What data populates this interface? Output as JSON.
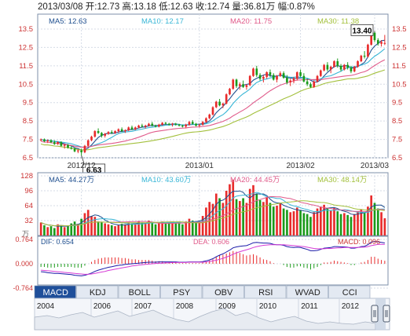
{
  "header": {
    "text": "2013/03/08 开:12.73 高:13.18 低:12.63 收:12.74 量:36.81万 幅:0.87%"
  },
  "colors": {
    "up": "#e82b2b",
    "down": "#1a9a1a",
    "ma5": "#1f4f8f",
    "ma10": "#38b6d6",
    "ma20": "#e05a8a",
    "ma30": "#a3c03c",
    "grid": "#d5dbe6",
    "axis": "#c33"
  },
  "price_legend": [
    {
      "label": "MA5: 12.63",
      "color": "#1f4f8f"
    },
    {
      "label": "MA10: 12.17",
      "color": "#38b6d6"
    },
    {
      "label": "MA20: 11.75",
      "color": "#e05a8a"
    },
    {
      "label": "MA30: 11.38",
      "color": "#a3c03c"
    }
  ],
  "volume_legend": [
    {
      "label": "MA5: 44.27万",
      "color": "#1f4f8f"
    },
    {
      "label": "MA10: 43.60万",
      "color": "#38b6d6"
    },
    {
      "label": "MA20: 44.45万",
      "color": "#e05a8a"
    },
    {
      "label": "MA30: 48.14万",
      "color": "#a3c03c"
    }
  ],
  "macd_legend": {
    "dif": "DIF: 0.654",
    "dea": "DEA: 0.606",
    "macd": "MACD: 0.096"
  },
  "volume_unit": "万",
  "tabs": [
    "MACD",
    "KDJ",
    "BOLL",
    "PSY",
    "OBV",
    "RSI",
    "WVAD",
    "CCI"
  ],
  "timeline_years": [
    "2004",
    "2006",
    "2007",
    "2008",
    "2009",
    "2010",
    "2011",
    "2012"
  ],
  "chart_data": [
    {
      "type": "candlestick",
      "title": "",
      "ylim": [
        6.5,
        13.5
      ],
      "y_ticks": [
        "13.5",
        "12.5",
        "11.5",
        "10.5",
        "9.5",
        "8.5",
        "7.5",
        "6.5"
      ],
      "x_tick_labels": [
        {
          "label": "2012/12",
          "index": 12
        },
        {
          "label": "2013/01",
          "index": 47
        },
        {
          "label": "2013/02",
          "index": 77
        },
        {
          "label": "2013/03",
          "index": 99
        }
      ],
      "candles": [
        [
          7.45,
          7.55,
          7.4,
          7.5
        ],
        [
          7.5,
          7.55,
          7.35,
          7.4
        ],
        [
          7.4,
          7.5,
          7.3,
          7.45
        ],
        [
          7.45,
          7.5,
          7.3,
          7.35
        ],
        [
          7.35,
          7.45,
          7.2,
          7.25
        ],
        [
          7.25,
          7.4,
          7.2,
          7.35
        ],
        [
          7.35,
          7.4,
          7.1,
          7.15
        ],
        [
          7.15,
          7.25,
          7.0,
          7.2
        ],
        [
          7.2,
          7.25,
          7.0,
          7.05
        ],
        [
          7.05,
          7.15,
          6.95,
          7.0
        ],
        [
          7.0,
          7.05,
          6.8,
          6.85
        ],
        [
          6.85,
          6.95,
          6.75,
          6.9
        ],
        [
          6.9,
          7.0,
          6.63,
          6.8
        ],
        [
          6.8,
          7.2,
          6.75,
          7.15
        ],
        [
          7.15,
          7.5,
          7.1,
          7.45
        ],
        [
          7.45,
          7.7,
          7.4,
          7.65
        ],
        [
          7.65,
          8.0,
          7.6,
          7.95
        ],
        [
          7.95,
          8.1,
          7.8,
          7.85
        ],
        [
          7.85,
          7.9,
          7.6,
          7.7
        ],
        [
          7.7,
          7.85,
          7.6,
          7.8
        ],
        [
          7.8,
          7.95,
          7.75,
          7.9
        ],
        [
          7.9,
          8.0,
          7.8,
          7.85
        ],
        [
          7.85,
          8.0,
          7.8,
          7.95
        ],
        [
          7.95,
          8.1,
          7.85,
          8.05
        ],
        [
          8.05,
          8.15,
          7.9,
          7.95
        ],
        [
          7.95,
          8.05,
          7.85,
          8.0
        ],
        [
          8.0,
          8.2,
          7.95,
          8.15
        ],
        [
          8.15,
          8.25,
          8.0,
          8.05
        ],
        [
          8.05,
          8.2,
          8.0,
          8.15
        ],
        [
          8.15,
          8.3,
          8.1,
          8.25
        ],
        [
          8.25,
          8.35,
          8.15,
          8.2
        ],
        [
          8.2,
          8.3,
          8.1,
          8.25
        ],
        [
          8.25,
          8.4,
          8.2,
          8.35
        ],
        [
          8.35,
          8.45,
          8.2,
          8.25
        ],
        [
          8.25,
          8.3,
          8.15,
          8.2
        ],
        [
          8.2,
          8.35,
          8.15,
          8.3
        ],
        [
          8.3,
          8.45,
          8.25,
          8.4
        ],
        [
          8.4,
          8.45,
          8.3,
          8.35
        ],
        [
          8.35,
          8.4,
          8.25,
          8.3
        ],
        [
          8.3,
          8.4,
          8.2,
          8.35
        ],
        [
          8.35,
          8.4,
          8.25,
          8.3
        ],
        [
          8.3,
          8.35,
          8.2,
          8.25
        ],
        [
          8.25,
          8.3,
          8.15,
          8.2
        ],
        [
          8.2,
          8.35,
          8.1,
          8.3
        ],
        [
          8.3,
          8.5,
          8.25,
          8.45
        ],
        [
          8.45,
          8.55,
          8.3,
          8.35
        ],
        [
          8.35,
          8.4,
          8.2,
          8.25
        ],
        [
          8.25,
          8.35,
          8.15,
          8.3
        ],
        [
          8.3,
          8.5,
          8.25,
          8.45
        ],
        [
          8.45,
          8.7,
          8.4,
          8.65
        ],
        [
          8.65,
          8.9,
          8.6,
          8.85
        ],
        [
          8.85,
          9.3,
          8.8,
          9.25
        ],
        [
          9.25,
          9.6,
          9.2,
          9.55
        ],
        [
          9.55,
          9.7,
          9.3,
          9.35
        ],
        [
          9.35,
          9.5,
          9.2,
          9.45
        ],
        [
          9.45,
          10.0,
          9.4,
          9.95
        ],
        [
          9.95,
          10.3,
          9.9,
          10.25
        ],
        [
          10.25,
          10.8,
          10.2,
          10.75
        ],
        [
          10.75,
          10.8,
          10.3,
          10.4
        ],
        [
          10.4,
          10.6,
          10.2,
          10.5
        ],
        [
          10.5,
          10.7,
          10.3,
          10.35
        ],
        [
          10.35,
          10.5,
          10.2,
          10.45
        ],
        [
          10.45,
          11.0,
          10.4,
          10.95
        ],
        [
          10.95,
          11.4,
          10.9,
          11.35
        ],
        [
          11.35,
          11.5,
          10.9,
          11.0
        ],
        [
          11.0,
          11.1,
          10.7,
          10.8
        ],
        [
          10.8,
          11.0,
          10.6,
          10.9
        ],
        [
          10.9,
          11.2,
          10.8,
          11.15
        ],
        [
          11.15,
          11.3,
          10.9,
          11.0
        ],
        [
          11.0,
          11.1,
          10.7,
          10.75
        ],
        [
          10.75,
          11.0,
          10.6,
          10.95
        ],
        [
          10.95,
          11.2,
          10.9,
          11.1
        ],
        [
          11.1,
          11.2,
          10.8,
          10.85
        ],
        [
          10.85,
          11.0,
          10.5,
          10.6
        ],
        [
          10.6,
          10.8,
          10.4,
          10.7
        ],
        [
          10.7,
          10.9,
          10.55,
          10.8
        ],
        [
          10.8,
          11.2,
          10.7,
          11.15
        ],
        [
          11.15,
          11.3,
          10.9,
          10.95
        ],
        [
          10.95,
          11.1,
          10.6,
          10.65
        ],
        [
          10.65,
          10.8,
          10.4,
          10.5
        ],
        [
          10.5,
          10.6,
          10.3,
          10.35
        ],
        [
          10.35,
          10.7,
          10.3,
          10.65
        ],
        [
          10.65,
          11.0,
          10.6,
          10.95
        ],
        [
          10.95,
          11.3,
          10.9,
          11.25
        ],
        [
          11.25,
          11.6,
          11.2,
          11.55
        ],
        [
          11.55,
          11.7,
          11.2,
          11.3
        ],
        [
          11.3,
          11.5,
          11.1,
          11.45
        ],
        [
          11.45,
          11.8,
          11.4,
          11.75
        ],
        [
          11.75,
          11.9,
          11.4,
          11.5
        ],
        [
          11.5,
          11.6,
          11.2,
          11.3
        ],
        [
          11.3,
          11.6,
          11.25,
          11.55
        ],
        [
          11.55,
          11.7,
          11.3,
          11.4
        ],
        [
          11.4,
          11.5,
          11.1,
          11.2
        ],
        [
          11.2,
          11.5,
          11.15,
          11.45
        ],
        [
          11.45,
          11.8,
          11.4,
          11.75
        ],
        [
          11.75,
          12.1,
          11.7,
          12.05
        ],
        [
          12.05,
          12.3,
          11.9,
          12.0
        ],
        [
          12.0,
          12.7,
          11.95,
          12.65
        ],
        [
          12.65,
          13.4,
          12.6,
          13.3
        ],
        [
          13.3,
          13.35,
          12.8,
          12.9
        ],
        [
          12.9,
          13.0,
          12.6,
          12.7
        ],
        [
          12.7,
          12.9,
          12.55,
          12.8
        ],
        [
          12.73,
          13.18,
          12.63,
          12.74
        ]
      ],
      "annotations": [
        {
          "text": "13.40",
          "index": 99,
          "value": 13.4
        },
        {
          "text": "6.63",
          "index": 12,
          "value": 6.63
        }
      ]
    },
    {
      "type": "bar",
      "title": "",
      "ylim": [
        0,
        128
      ],
      "y_ticks": [
        "128",
        "96",
        "64",
        "32"
      ],
      "values": [
        28,
        22,
        18,
        20,
        16,
        24,
        22,
        18,
        20,
        26,
        30,
        25,
        36,
        48,
        55,
        42,
        40,
        30,
        28,
        26,
        24,
        22,
        20,
        22,
        25,
        24,
        28,
        26,
        24,
        30,
        28,
        26,
        32,
        28,
        24,
        26,
        30,
        28,
        26,
        30,
        28,
        26,
        24,
        30,
        36,
        32,
        28,
        30,
        42,
        60,
        72,
        68,
        90,
        80,
        70,
        96,
        110,
        120,
        78,
        74,
        80,
        70,
        100,
        108,
        90,
        76,
        72,
        82,
        70,
        62,
        64,
        70,
        58,
        55,
        50,
        52,
        60,
        54,
        48,
        46,
        40,
        50,
        58,
        62,
        66,
        58,
        54,
        60,
        52,
        46,
        48,
        44,
        40,
        46,
        52,
        56,
        50,
        62,
        86,
        70,
        58,
        50,
        37
      ],
      "ma_series": [
        {
          "name": "MA5",
          "values": [
            44,
            44,
            44,
            44,
            44
          ]
        },
        {
          "name": "MA10",
          "values": [
            44,
            44,
            44,
            44,
            44
          ]
        },
        {
          "name": "MA20",
          "values": [
            44,
            44,
            44,
            44,
            44
          ]
        },
        {
          "name": "MA30",
          "values": [
            48,
            48,
            48,
            48,
            48
          ]
        }
      ]
    },
    {
      "type": "line",
      "title": "",
      "ylim": [
        -0.764,
        0.764
      ],
      "y_ticks": [
        "0.764",
        "0.000",
        "-0.764"
      ],
      "series": [
        {
          "name": "DIF",
          "values": [
            -0.25,
            -0.26,
            -0.28,
            -0.29,
            -0.3,
            -0.3,
            -0.31,
            -0.32,
            -0.33,
            -0.34,
            -0.36,
            -0.37,
            -0.38,
            -0.36,
            -0.33,
            -0.29,
            -0.24,
            -0.2,
            -0.17,
            -0.14,
            -0.11,
            -0.09,
            -0.07,
            -0.05,
            -0.04,
            -0.02,
            -0.01,
            0.0,
            0.01,
            0.02,
            0.03,
            0.04,
            0.05,
            0.05,
            0.05,
            0.06,
            0.06,
            0.06,
            0.06,
            0.06,
            0.06,
            0.05,
            0.05,
            0.05,
            0.06,
            0.06,
            0.06,
            0.06,
            0.07,
            0.09,
            0.12,
            0.16,
            0.22,
            0.27,
            0.31,
            0.37,
            0.43,
            0.5,
            0.53,
            0.55,
            0.56,
            0.57,
            0.61,
            0.66,
            0.67,
            0.66,
            0.65,
            0.65,
            0.64,
            0.61,
            0.6,
            0.6,
            0.58,
            0.54,
            0.52,
            0.51,
            0.52,
            0.51,
            0.48,
            0.45,
            0.41,
            0.41,
            0.42,
            0.45,
            0.49,
            0.5,
            0.51,
            0.54,
            0.54,
            0.53,
            0.53,
            0.52,
            0.49,
            0.49,
            0.51,
            0.54,
            0.55,
            0.6,
            0.68,
            0.7,
            0.69,
            0.67,
            0.654
          ]
        },
        {
          "name": "DEA",
          "values": [
            -0.2,
            -0.21,
            -0.22,
            -0.23,
            -0.24,
            -0.25,
            -0.26,
            -0.27,
            -0.28,
            -0.29,
            -0.3,
            -0.31,
            -0.32,
            -0.33,
            -0.33,
            -0.32,
            -0.3,
            -0.28,
            -0.26,
            -0.24,
            -0.21,
            -0.19,
            -0.17,
            -0.15,
            -0.13,
            -0.11,
            -0.09,
            -0.07,
            -0.06,
            -0.04,
            -0.03,
            -0.02,
            -0.01,
            0.0,
            0.01,
            0.02,
            0.02,
            0.03,
            0.03,
            0.04,
            0.04,
            0.04,
            0.04,
            0.04,
            0.05,
            0.05,
            0.05,
            0.05,
            0.05,
            0.06,
            0.07,
            0.09,
            0.11,
            0.14,
            0.17,
            0.21,
            0.25,
            0.3,
            0.34,
            0.38,
            0.41,
            0.44,
            0.47,
            0.51,
            0.54,
            0.56,
            0.58,
            0.59,
            0.6,
            0.6,
            0.6,
            0.6,
            0.6,
            0.59,
            0.58,
            0.57,
            0.56,
            0.55,
            0.54,
            0.52,
            0.5,
            0.48,
            0.47,
            0.47,
            0.47,
            0.48,
            0.48,
            0.49,
            0.5,
            0.5,
            0.51,
            0.51,
            0.51,
            0.51,
            0.51,
            0.52,
            0.52,
            0.54,
            0.57,
            0.59,
            0.61,
            0.61,
            0.606
          ]
        }
      ]
    }
  ]
}
